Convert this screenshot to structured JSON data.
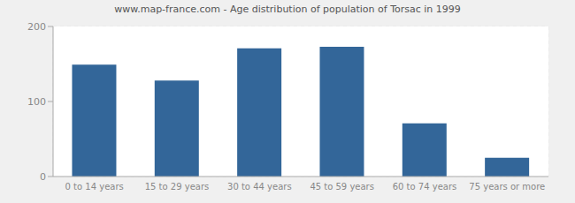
{
  "chart_data": {
    "type": "bar",
    "title": "www.map-france.com - Age distribution of population of Torsac in 1999",
    "categories": [
      "0 to 14 years",
      "15 to 29 years",
      "30 to 44 years",
      "45 to 59 years",
      "60 to 74 years",
      "75 years or more"
    ],
    "values": [
      149,
      128,
      171,
      173,
      71,
      25
    ],
    "color": "#336699",
    "ylim": [
      0,
      200
    ],
    "yticks": [
      0,
      100,
      200
    ],
    "grid": true
  }
}
